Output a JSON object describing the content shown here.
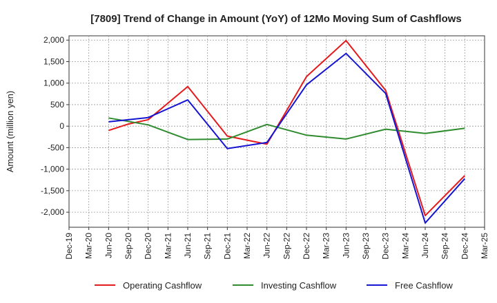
{
  "chart_data": {
    "type": "line",
    "title": "[7809]  Trend of Change in Amount (YoY) of 12Mo Moving Sum of Cashflows",
    "xlabel": "",
    "ylabel": "Amount (million yen)",
    "ylim": [
      -2350,
      2100
    ],
    "grid": true,
    "legend_position": "bottom",
    "categories": [
      "Dec-19",
      "Mar-20",
      "Jun-20",
      "Sep-20",
      "Dec-20",
      "Mar-21",
      "Jun-21",
      "Sep-21",
      "Dec-21",
      "Mar-22",
      "Jun-22",
      "Sep-22",
      "Dec-22",
      "Mar-23",
      "Jun-23",
      "Sep-23",
      "Dec-23",
      "Mar-24",
      "Jun-24",
      "Sep-24",
      "Dec-24",
      "Mar-25"
    ],
    "y_ticks": [
      {
        "value": 2000,
        "label": "2,000"
      },
      {
        "value": 1500,
        "label": "1,500"
      },
      {
        "value": 1000,
        "label": "1,000"
      },
      {
        "value": 500,
        "label": "500"
      },
      {
        "value": 0,
        "label": "0"
      },
      {
        "value": -500,
        "label": "-500"
      },
      {
        "value": -1000,
        "label": "-1,000"
      },
      {
        "value": -1500,
        "label": "-1,500"
      },
      {
        "value": -2000,
        "label": "-2,000"
      }
    ],
    "series": [
      {
        "name": "Operating Cashflow",
        "color": "#e41a1c",
        "values": [
          null,
          null,
          -100,
          50,
          150,
          null,
          920,
          null,
          -230,
          null,
          -420,
          null,
          1150,
          null,
          1990,
          null,
          830,
          null,
          -2080,
          null,
          -1150,
          null
        ]
      },
      {
        "name": "Investing Cashflow",
        "color": "#2e8b2e",
        "values": [
          null,
          null,
          190,
          null,
          30,
          null,
          -310,
          null,
          -300,
          null,
          40,
          null,
          -210,
          null,
          -300,
          null,
          -70,
          null,
          -170,
          null,
          -50,
          null
        ]
      },
      {
        "name": "Free Cashflow",
        "color": "#1414d2",
        "values": [
          null,
          null,
          100,
          null,
          200,
          null,
          610,
          null,
          -520,
          null,
          -380,
          null,
          960,
          null,
          1690,
          null,
          760,
          null,
          -2250,
          null,
          -1220,
          null
        ]
      }
    ]
  }
}
